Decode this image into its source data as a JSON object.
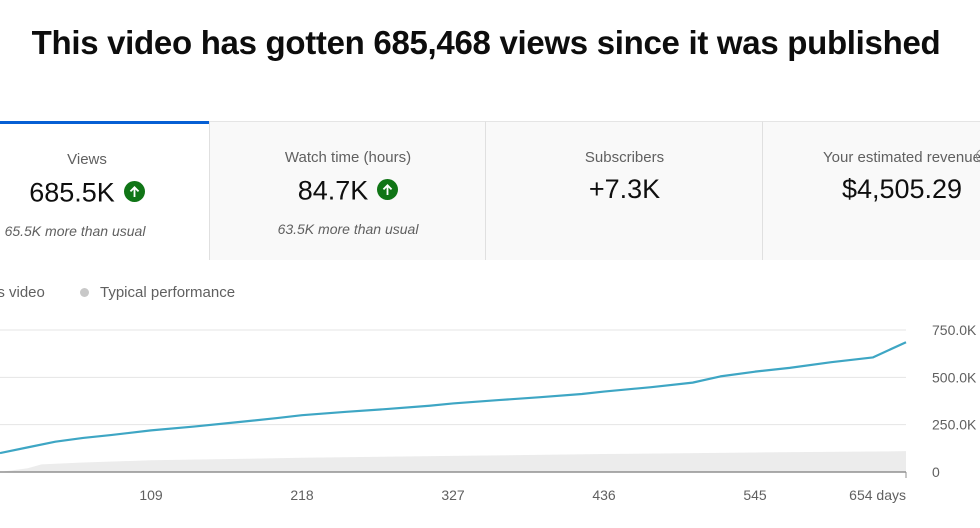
{
  "headline": "This video has gotten 685,468 views since it was published",
  "cards": [
    {
      "label": "Views",
      "value": "685.5K",
      "trend": "up",
      "sub": "65.5K more than usual",
      "active": true
    },
    {
      "label": "Watch time (hours)",
      "value": "84.7K",
      "trend": "up",
      "sub": "63.5K more than usual",
      "active": false
    },
    {
      "label": "Subscribers",
      "value": "+7.3K",
      "trend": "none",
      "sub": "",
      "active": false
    },
    {
      "label": "Your estimated revenue",
      "value": "$4,505.29",
      "trend": "none",
      "sub": "",
      "active": false,
      "icon": "info-icon"
    }
  ],
  "legend": {
    "this_video": "is video",
    "typical": "Typical performance"
  },
  "colors": {
    "accent": "#065fd4",
    "series_this_video": "#3ea6c4",
    "series_typical": "#ececec",
    "trend_up": "#107516"
  },
  "chart_data": {
    "type": "line",
    "xlabel": "",
    "ylabel": "",
    "x_ticks": [
      "109",
      "218",
      "327",
      "436",
      "545",
      "654 days"
    ],
    "x_tick_values": [
      109,
      218,
      327,
      436,
      545,
      654
    ],
    "y_ticks": [
      "0",
      "250.0K",
      "500.0K",
      "750.0K"
    ],
    "y_tick_values": [
      0,
      250000,
      500000,
      750000
    ],
    "ylim": [
      0,
      750000
    ],
    "xlim": [
      0,
      654
    ],
    "grid": true,
    "series": [
      {
        "name": "This video",
        "x": [
          0,
          20,
          40,
          60,
          80,
          109,
          140,
          170,
          200,
          218,
          250,
          280,
          310,
          327,
          360,
          390,
          420,
          436,
          470,
          500,
          520,
          545,
          570,
          600,
          630,
          654
        ],
        "values": [
          100000,
          130000,
          160000,
          180000,
          195000,
          220000,
          240000,
          262000,
          285000,
          300000,
          318000,
          333000,
          350000,
          362000,
          380000,
          395000,
          412000,
          425000,
          448000,
          472000,
          505000,
          530000,
          550000,
          580000,
          605000,
          685468
        ]
      },
      {
        "name": "Typical performance",
        "x": [
          0,
          20,
          30,
          60,
          109,
          218,
          327,
          436,
          545,
          654
        ],
        "values": [
          0,
          20000,
          40000,
          50000,
          62000,
          75000,
          85000,
          95000,
          103000,
          110000
        ]
      }
    ]
  }
}
